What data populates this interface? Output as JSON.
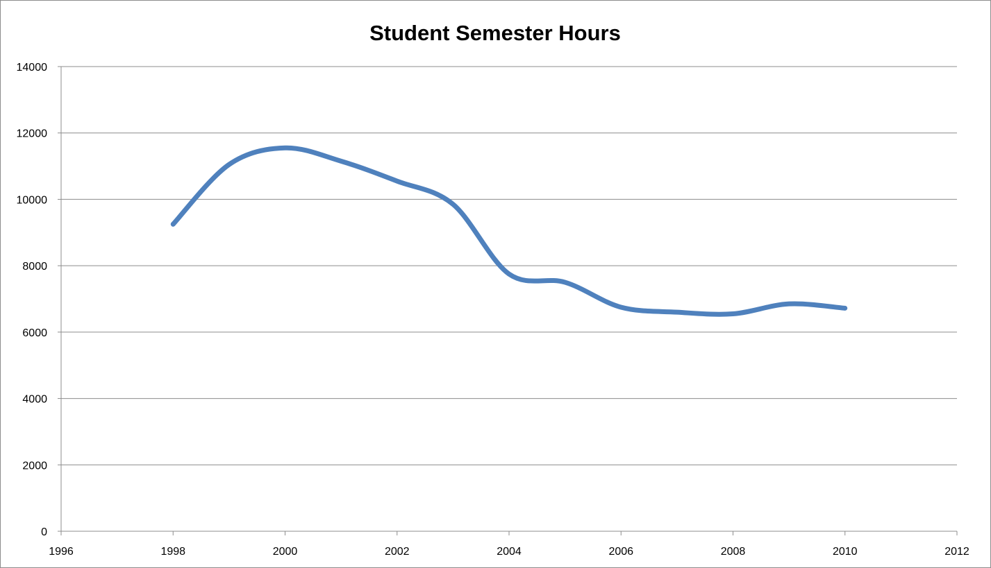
{
  "chart_data": {
    "type": "line",
    "title": "Student Semester Hours",
    "xlabel": "",
    "ylabel": "",
    "xlim": [
      1996,
      2012
    ],
    "ylim": [
      0,
      14000
    ],
    "x_ticks": [
      1996,
      1998,
      2000,
      2002,
      2004,
      2006,
      2008,
      2010,
      2012
    ],
    "y_ticks": [
      0,
      2000,
      4000,
      6000,
      8000,
      10000,
      12000,
      14000
    ],
    "grid": "horizontal",
    "legend": "none",
    "smooth": true,
    "series": [
      {
        "color": "#4f81bd",
        "x": [
          1998,
          1999,
          2000,
          2001,
          2002,
          2003,
          2004,
          2005,
          2006,
          2007,
          2008,
          2009,
          2010
        ],
        "y": [
          9250,
          11050,
          11550,
          11150,
          10550,
          9850,
          7750,
          7500,
          6750,
          6600,
          6550,
          6850,
          6720
        ]
      }
    ]
  }
}
